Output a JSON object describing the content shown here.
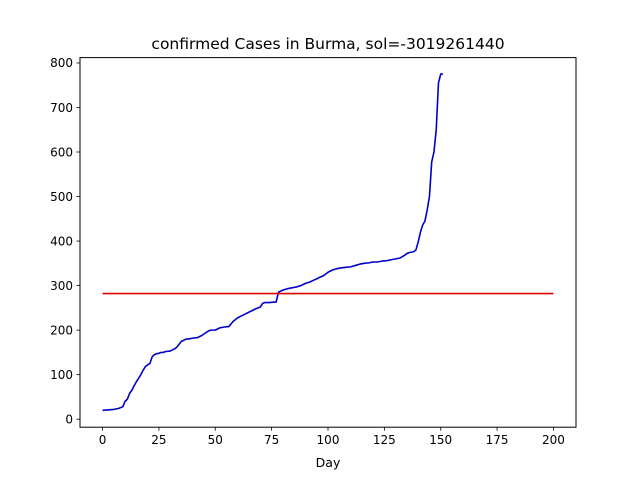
{
  "chart_data": {
    "type": "line",
    "title": "confirmed Cases in Burma, sol=-3019261440",
    "xlabel": "Day",
    "ylabel": "",
    "xlim": [
      -10,
      210
    ],
    "ylim": [
      -18,
      812
    ],
    "xticks": [
      0,
      25,
      50,
      75,
      100,
      125,
      150,
      175,
      200
    ],
    "yticks": [
      0,
      100,
      200,
      300,
      400,
      500,
      600,
      700,
      800
    ],
    "grid": false,
    "series": [
      {
        "color": "#0000cc",
        "x": [
          0,
          5,
          7,
          9,
          10,
          11,
          12,
          13,
          14,
          15,
          16,
          17,
          18,
          19,
          20,
          21,
          22,
          23,
          24,
          25,
          26,
          27,
          28,
          30,
          32,
          33,
          35,
          36,
          37,
          38,
          40,
          42,
          44,
          46,
          47,
          48,
          50,
          52,
          54,
          56,
          58,
          59,
          60,
          62,
          64,
          66,
          68,
          70,
          71,
          72,
          73,
          74,
          76,
          77,
          78,
          80,
          82,
          84,
          85,
          86,
          88,
          90,
          92,
          94,
          95,
          96,
          98,
          100,
          102,
          104,
          106,
          108,
          110,
          112,
          114,
          116,
          118,
          120,
          122,
          124,
          126,
          128,
          130,
          132,
          134,
          135,
          136,
          138,
          139,
          140,
          141,
          142,
          143,
          144,
          145,
          146,
          147,
          148,
          149,
          150,
          151
        ],
        "y": [
          20,
          22,
          24,
          28,
          40,
          45,
          58,
          65,
          75,
          84,
          92,
          100,
          110,
          118,
          122,
          125,
          140,
          145,
          147,
          148,
          150,
          150,
          152,
          153,
          158,
          162,
          175,
          177,
          180,
          180,
          182,
          183,
          188,
          195,
          198,
          200,
          200,
          205,
          207,
          208,
          220,
          224,
          228,
          233,
          238,
          243,
          248,
          252,
          260,
          262,
          262,
          262,
          263,
          263,
          285,
          290,
          293,
          295,
          296,
          297,
          300,
          305,
          308,
          313,
          315,
          318,
          322,
          330,
          335,
          338,
          340,
          341,
          342,
          345,
          348,
          350,
          351,
          353,
          353,
          355,
          356,
          358,
          360,
          362,
          368,
          372,
          374,
          376,
          380,
          398,
          420,
          436,
          445,
          470,
          500,
          578,
          600,
          650,
          755,
          775,
          775
        ]
      },
      {
        "color": "#dd0000",
        "x": [
          0,
          200
        ],
        "y": [
          282,
          282
        ]
      }
    ]
  }
}
